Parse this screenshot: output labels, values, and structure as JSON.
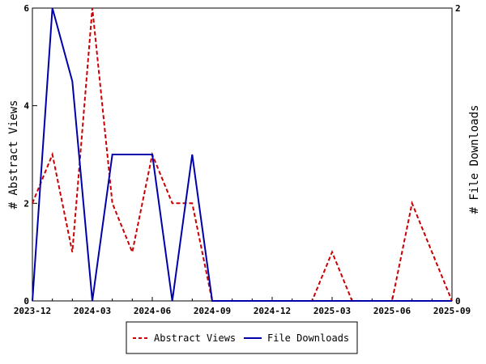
{
  "chart_data": {
    "type": "line",
    "x": [
      "2023-12",
      "2024-01",
      "2024-02",
      "2024-03",
      "2024-04",
      "2024-05",
      "2024-06",
      "2024-07",
      "2024-08",
      "2024-09",
      "2024-10",
      "2024-11",
      "2024-12",
      "2025-01",
      "2025-02",
      "2025-03",
      "2025-04",
      "2025-05",
      "2025-06",
      "2025-07",
      "2025-08",
      "2025-09"
    ],
    "x_ticks": [
      "2023-12",
      "2024-03",
      "2024-06",
      "2024-09",
      "2024-12",
      "2025-03",
      "2025-06",
      "2025-09"
    ],
    "y_left": {
      "label": "# Abstract Views",
      "range": [
        0,
        6
      ],
      "ticks": [
        "0",
        "2",
        "4",
        "6"
      ]
    },
    "y_right": {
      "label": "# File Downloads",
      "range": [
        0,
        2
      ],
      "ticks": [
        "0",
        "2"
      ]
    },
    "series": [
      {
        "name": "Abstract Views",
        "axis": "left",
        "color": "#cc0000",
        "style": "dashed",
        "values": [
          2,
          3,
          1,
          6,
          2,
          1,
          3,
          2,
          2,
          0,
          0,
          0,
          0,
          0,
          0,
          1,
          0,
          0,
          0,
          2,
          1,
          0
        ]
      },
      {
        "name": "File Downloads",
        "axis": "right",
        "color": "#0000aa",
        "style": "solid",
        "values": [
          0,
          2,
          1.5,
          0,
          1,
          1,
          1,
          0,
          1,
          0,
          0,
          0,
          0,
          0,
          0,
          0,
          0,
          0,
          0,
          0,
          0,
          0
        ]
      }
    ],
    "grid": false,
    "legend_position": "bottom-center"
  }
}
